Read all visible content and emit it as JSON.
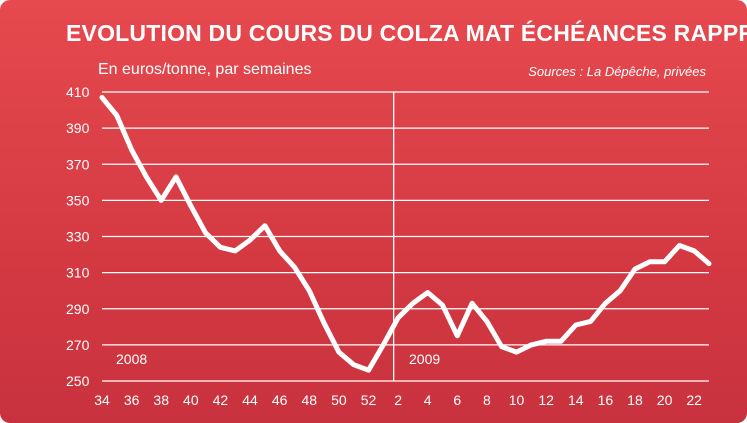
{
  "chart_data": {
    "type": "line",
    "title": "EVOLUTION DU COURS DU COLZA MAT  ÉCHÉANCES RAPPROCHÉES",
    "subtitle": "En euros/tonne, par semaines",
    "source": "Sources : La Dépêche, privées",
    "ylabel": "",
    "xlabel": "",
    "ylim": [
      250,
      410
    ],
    "yticks": [
      410,
      390,
      370,
      350,
      330,
      310,
      290,
      270,
      250
    ],
    "xtick_labels": [
      "34",
      "36",
      "38",
      "40",
      "42",
      "44",
      "46",
      "48",
      "50",
      "52",
      "2",
      "4",
      "6",
      "8",
      "10",
      "12",
      "14",
      "16",
      "18",
      "20",
      "22"
    ],
    "year_labels": [
      "2008",
      "2009"
    ],
    "grid": true,
    "colors": {
      "line": "#ffffff",
      "grid": "#ffffff",
      "text": "#ffffff",
      "background": "#d63a43"
    },
    "series": [
      {
        "values": [
          {
            "x": 34,
            "y": 407
          },
          {
            "x": 35,
            "y": 397
          },
          {
            "x": 36,
            "y": 378
          },
          {
            "x": 37,
            "y": 363
          },
          {
            "x": 38,
            "y": 350
          },
          {
            "x": 39,
            "y": 363
          },
          {
            "x": 40,
            "y": 347
          },
          {
            "x": 41,
            "y": 332
          },
          {
            "x": 42,
            "y": 324
          },
          {
            "x": 43,
            "y": 322
          },
          {
            "x": 44,
            "y": 328
          },
          {
            "x": 45,
            "y": 336
          },
          {
            "x": 46,
            "y": 322
          },
          {
            "x": 47,
            "y": 313
          },
          {
            "x": 48,
            "y": 300
          },
          {
            "x": 49,
            "y": 282
          },
          {
            "x": 50,
            "y": 266
          },
          {
            "x": 51,
            "y": 259
          },
          {
            "x": 52,
            "y": 256
          },
          {
            "x": 53,
            "y": 270
          },
          {
            "x": 54,
            "y": 285
          },
          {
            "x": 55,
            "y": 293
          },
          {
            "x": 56,
            "y": 299
          },
          {
            "x": 57,
            "y": 292
          },
          {
            "x": 58,
            "y": 275
          },
          {
            "x": 59,
            "y": 293
          },
          {
            "x": 60,
            "y": 283
          },
          {
            "x": 61,
            "y": 269
          },
          {
            "x": 62,
            "y": 266
          },
          {
            "x": 63,
            "y": 270
          },
          {
            "x": 64,
            "y": 272
          },
          {
            "x": 65,
            "y": 272
          },
          {
            "x": 66,
            "y": 281
          },
          {
            "x": 67,
            "y": 283
          },
          {
            "x": 68,
            "y": 293
          },
          {
            "x": 69,
            "y": 300
          },
          {
            "x": 70,
            "y": 312
          },
          {
            "x": 71,
            "y": 316
          },
          {
            "x": 72,
            "y": 316
          },
          {
            "x": 73,
            "y": 325
          },
          {
            "x": 74,
            "y": 322
          },
          {
            "x": 75,
            "y": 315
          }
        ]
      }
    ]
  }
}
